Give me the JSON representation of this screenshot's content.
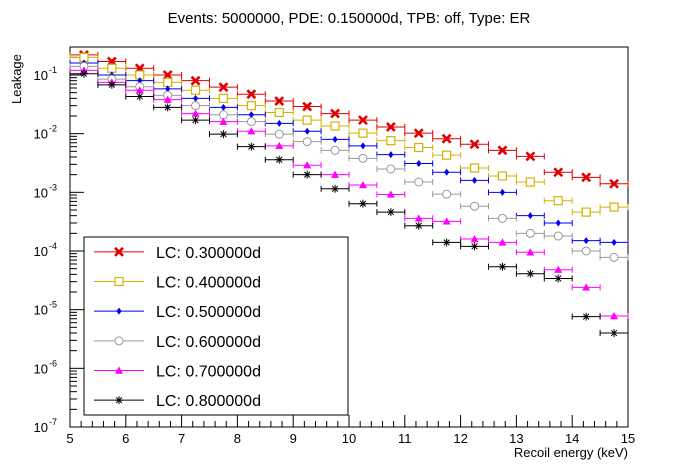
{
  "chart_data": {
    "type": "scatter",
    "title": "Events: 5000000, PDE: 0.150000d, TPB: off, Type: ER",
    "xlabel": "Recoil energy (keV)",
    "ylabel": "Leakage",
    "xlim": [
      5,
      15
    ],
    "ylim": [
      1e-07,
      0.3
    ],
    "y_scale": "log",
    "x_ticks": [
      "5",
      "6",
      "7",
      "8",
      "9",
      "10",
      "11",
      "12",
      "13",
      "14",
      "15"
    ],
    "y_ticks": [
      {
        "value": 1e-07,
        "mantissa": "10",
        "exponent": "-7"
      },
      {
        "value": 1e-06,
        "mantissa": "10",
        "exponent": "-6"
      },
      {
        "value": 1e-05,
        "mantissa": "10",
        "exponent": "-5"
      },
      {
        "value": 0.0001,
        "mantissa": "10",
        "exponent": "-4"
      },
      {
        "value": 0.001,
        "mantissa": "10",
        "exponent": "-3"
      },
      {
        "value": 0.01,
        "mantissa": "10",
        "exponent": "-2"
      },
      {
        "value": 0.1,
        "mantissa": "10",
        "exponent": "-1"
      }
    ],
    "legend_position": "bottom-left",
    "x": [
      5.25,
      5.75,
      6.25,
      6.75,
      7.25,
      7.75,
      8.25,
      8.75,
      9.25,
      9.75,
      10.25,
      10.75,
      11.25,
      11.75,
      12.25,
      12.75,
      13.25,
      13.75,
      14.25,
      14.75
    ],
    "x_bin_half_width": 0.25,
    "series": [
      {
        "name": "LC: 0.300000d",
        "color": "#e00000",
        "marker": "x-cross",
        "values": [
          0.22,
          0.17,
          0.13,
          0.1,
          0.08,
          0.062,
          0.047,
          0.036,
          0.029,
          0.022,
          0.017,
          0.013,
          0.0102,
          0.0082,
          0.0066,
          0.0052,
          0.0041,
          0.0022,
          0.0018,
          0.0014
        ]
      },
      {
        "name": "LC: 0.400000d",
        "color": "#d4b200",
        "marker": "open-square",
        "values": [
          0.2,
          0.13,
          0.1,
          0.075,
          0.055,
          0.04,
          0.03,
          0.023,
          0.017,
          0.0135,
          0.0102,
          0.0076,
          0.0058,
          0.0043,
          0.0026,
          0.0019,
          0.0015,
          0.00072,
          0.00046,
          0.00056
        ]
      },
      {
        "name": "LC: 0.500000d",
        "color": "#0000ee",
        "marker": "filled-diamond",
        "values": [
          0.16,
          0.1,
          0.08,
          0.058,
          0.04,
          0.028,
          0.021,
          0.015,
          0.011,
          0.008,
          0.0062,
          0.0044,
          0.0031,
          0.0022,
          0.0016,
          0.001,
          0.0004,
          0.0003,
          0.00015,
          0.00014
        ]
      },
      {
        "name": "LC: 0.600000d",
        "color": "#999999",
        "marker": "open-circle",
        "values": [
          0.14,
          0.085,
          0.063,
          0.045,
          0.03,
          0.021,
          0.016,
          0.0098,
          0.0073,
          0.0052,
          0.0038,
          0.0025,
          0.0015,
          0.00093,
          0.00058,
          0.00036,
          0.0002,
          0.00018,
          0.0001,
          7.8e-05
        ]
      },
      {
        "name": "LC: 0.700000d",
        "color": "#ff00ff",
        "marker": "filled-triangle",
        "values": [
          0.12,
          0.075,
          0.055,
          0.038,
          0.022,
          0.016,
          0.011,
          0.0062,
          0.0029,
          0.002,
          0.00133,
          0.00092,
          0.00036,
          0.00032,
          0.00016,
          0.00014,
          9.5e-05,
          4.8e-05,
          2.4e-05,
          7.8e-06
        ]
      },
      {
        "name": "LC: 0.800000d",
        "color": "#000000",
        "marker": "asterisk",
        "values": [
          0.105,
          0.068,
          0.043,
          0.028,
          0.017,
          0.0098,
          0.006,
          0.0036,
          0.002,
          0.00115,
          0.00064,
          0.00046,
          0.00027,
          0.00014,
          0.00012,
          5.4e-05,
          4.1e-05,
          3.4e-05,
          7.6e-06,
          4e-06
        ]
      }
    ]
  }
}
